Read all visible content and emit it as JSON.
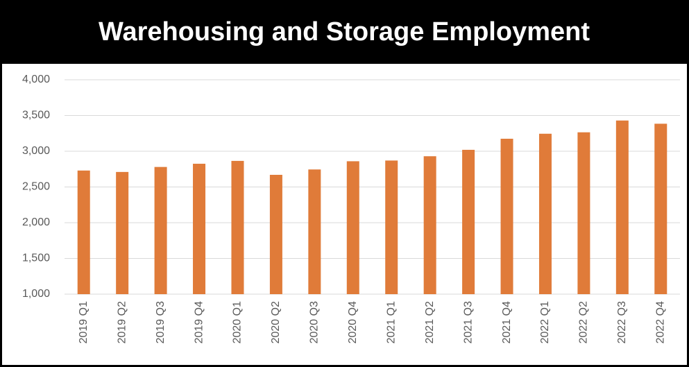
{
  "chart_data": {
    "type": "bar",
    "title": "Warehousing and Storage Employment",
    "categories": [
      "2019 Q1",
      "2019 Q2",
      "2019 Q3",
      "2019 Q4",
      "2020 Q1",
      "2020 Q2",
      "2020 Q3",
      "2020 Q4",
      "2021 Q1",
      "2021 Q2",
      "2021 Q3",
      "2021 Q4",
      "2022 Q1",
      "2022 Q2",
      "2022 Q3",
      "2022 Q4"
    ],
    "values": [
      2730,
      2710,
      2780,
      2825,
      2865,
      2670,
      2745,
      2860,
      2870,
      2930,
      3020,
      3175,
      3245,
      3265,
      3430,
      3385
    ],
    "color": "#e07b39",
    "ylim": [
      1000,
      4000
    ],
    "yticks": [
      {
        "value": 1000,
        "label": "1,000"
      },
      {
        "value": 1500,
        "label": "1,500"
      },
      {
        "value": 2000,
        "label": "2,000"
      },
      {
        "value": 2500,
        "label": "2,500"
      },
      {
        "value": 3000,
        "label": "3,000"
      },
      {
        "value": 3500,
        "label": "3,500"
      },
      {
        "value": 4000,
        "label": "4,000"
      }
    ],
    "grid": true
  }
}
